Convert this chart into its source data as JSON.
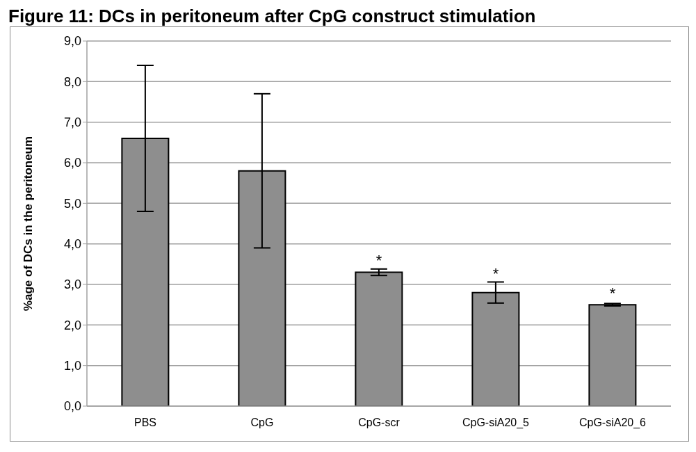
{
  "chart_data": {
    "type": "bar",
    "title": "Figure 11: DCs in peritoneum after CpG construct stimulation",
    "ylabel": "%age of DCs in the peritoneum",
    "categories": [
      "PBS",
      "CpG",
      "CpG-scr",
      "CpG-siA20_5",
      "CpG-siA20_6"
    ],
    "values": [
      6.6,
      5.8,
      3.3,
      2.8,
      2.5
    ],
    "errors": [
      1.8,
      1.9,
      0.08,
      0.26,
      0.03
    ],
    "color": "#8e8e8e",
    "ylim": [
      0,
      9
    ],
    "yticks": [
      {
        "value": 0,
        "label": "0,0"
      },
      {
        "value": 1,
        "label": "1,0"
      },
      {
        "value": 2,
        "label": "2,0"
      },
      {
        "value": 3,
        "label": "3,0"
      },
      {
        "value": 4,
        "label": "4,0"
      },
      {
        "value": 5,
        "label": "5,0"
      },
      {
        "value": 6,
        "label": "6,0"
      },
      {
        "value": 7,
        "label": "7,0"
      },
      {
        "value": 8,
        "label": "8,0"
      },
      {
        "value": 9,
        "label": "9,0"
      }
    ],
    "grid": "y",
    "annotations": [
      {
        "text": "*",
        "x": "CpG-scr",
        "y": 3.38
      },
      {
        "text": "*",
        "x": "CpG-siA20_5",
        "y": 3.06
      },
      {
        "text": "*",
        "x": "CpG-siA20_6",
        "y": 2.57
      }
    ]
  }
}
